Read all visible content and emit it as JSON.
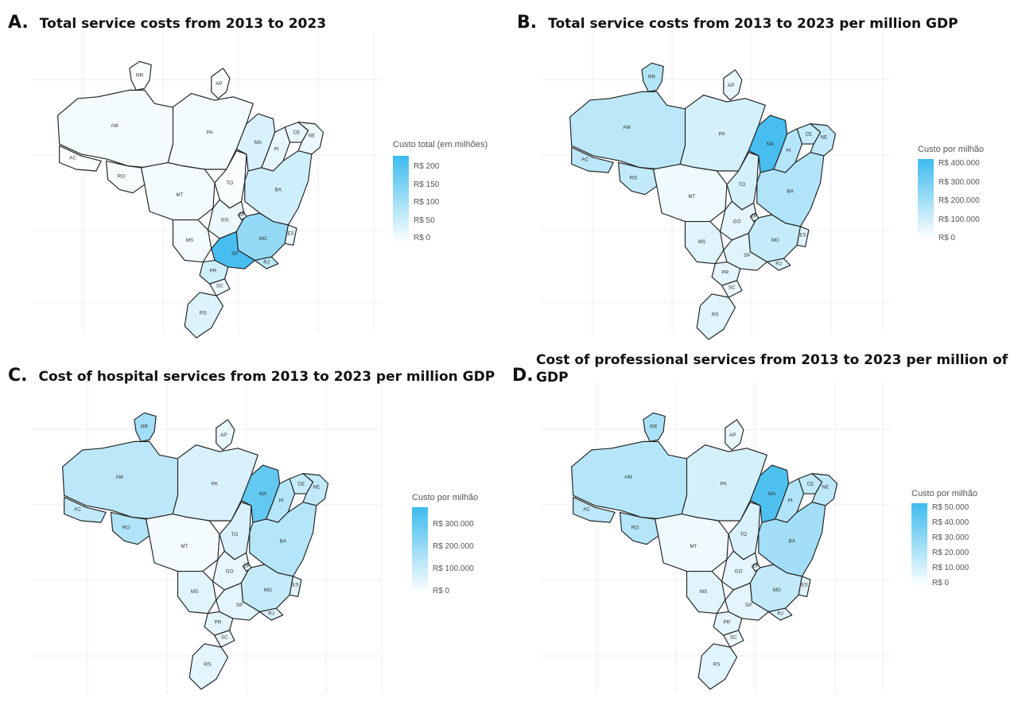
{
  "colors": {
    "scale_high": "#3dbbee",
    "scale_low": "#ffffff",
    "border": "#222222"
  },
  "panels": [
    {
      "letter": "A.",
      "title": "Total service costs from 2013 to 2023",
      "legend_title": "Custo total (em milhões)",
      "legend_ticks": [
        "R$ 200",
        "R$ 150",
        "R$ 100",
        "R$ 50",
        "R$ 0"
      ],
      "intensity": {
        "AC": 0.02,
        "AM": 0.05,
        "RR": 0.02,
        "AP": 0.03,
        "PA": 0.06,
        "RO": 0.04,
        "MT": 0.06,
        "MS": 0.06,
        "GO": 0.1,
        "TO": 0.03,
        "MA": 0.2,
        "PI": 0.12,
        "CE": 0.12,
        "NE": 0.1,
        "BA": 0.25,
        "MG": 0.55,
        "SP": 0.95,
        "RJ": 0.35,
        "ES": 0.1,
        "PR": 0.25,
        "SC": 0.1,
        "RS": 0.18,
        "DF": 0.1
      }
    },
    {
      "letter": "B.",
      "title": "Total service costs from 2013 to 2023 per million GDP",
      "legend_title": "Custo por milhão",
      "legend_ticks": [
        "R$ 400.000",
        "R$ 300.000",
        "R$ 200.000",
        "R$ 100.000",
        "R$ 0"
      ],
      "intensity": {
        "AC": 0.35,
        "AM": 0.35,
        "RR": 0.4,
        "AP": 0.12,
        "PA": 0.22,
        "RO": 0.32,
        "MT": 0.08,
        "MS": 0.16,
        "GO": 0.14,
        "TO": 0.22,
        "MA": 0.95,
        "PI": 0.38,
        "CE": 0.3,
        "NE": 0.32,
        "BA": 0.4,
        "MG": 0.3,
        "SP": 0.16,
        "RJ": 0.18,
        "ES": 0.16,
        "PR": 0.14,
        "SC": 0.1,
        "RS": 0.16,
        "DF": 0.1
      }
    },
    {
      "letter": "C.",
      "title": "Cost of hospital services from 2013 to 2023 per million GDP",
      "legend_title": "Custo por milhão",
      "legend_ticks": [
        "R$ 300.000",
        "R$ 200.000",
        "R$ 100.000",
        "R$ 0"
      ],
      "intensity": {
        "AC": 0.32,
        "AM": 0.35,
        "RR": 0.48,
        "AP": 0.12,
        "PA": 0.2,
        "RO": 0.4,
        "MT": 0.06,
        "MS": 0.16,
        "GO": 0.12,
        "TO": 0.2,
        "MA": 0.8,
        "PI": 0.38,
        "CE": 0.3,
        "NE": 0.32,
        "BA": 0.38,
        "MG": 0.3,
        "SP": 0.14,
        "RJ": 0.18,
        "ES": 0.15,
        "PR": 0.14,
        "SC": 0.1,
        "RS": 0.14,
        "DF": 0.1
      }
    },
    {
      "letter": "D.",
      "title": "Cost of professional services from 2013 to 2023 per million of GDP",
      "legend_title": "Custo por milhão",
      "legend_ticks": [
        "R$ 50.000",
        "R$ 40.000",
        "R$ 30.000",
        "R$ 20.000",
        "R$ 10.000",
        "R$ 0"
      ],
      "intensity": {
        "AC": 0.35,
        "AM": 0.38,
        "RR": 0.45,
        "AP": 0.12,
        "PA": 0.22,
        "RO": 0.38,
        "MT": 0.08,
        "MS": 0.16,
        "GO": 0.14,
        "TO": 0.2,
        "MA": 0.92,
        "PI": 0.4,
        "CE": 0.32,
        "NE": 0.34,
        "BA": 0.48,
        "MG": 0.32,
        "SP": 0.14,
        "RJ": 0.18,
        "ES": 0.16,
        "PR": 0.14,
        "SC": 0.1,
        "RS": 0.16,
        "DF": 0.1
      }
    }
  ],
  "states": [
    "AC",
    "AM",
    "RR",
    "AP",
    "PA",
    "RO",
    "MT",
    "MS",
    "GO",
    "TO",
    "MA",
    "PI",
    "CE",
    "NE",
    "BA",
    "MG",
    "SP",
    "RJ",
    "ES",
    "PR",
    "SC",
    "RS",
    "DF"
  ]
}
